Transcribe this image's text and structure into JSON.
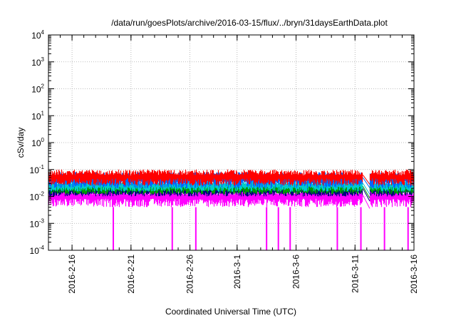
{
  "chart_data": {
    "type": "line",
    "title": "/data/run/goesPlots/archive/2016-03-15/flux/../bryn/31daysEarthData.plot",
    "xlabel": "Coordinated Universal Time (UTC)",
    "ylabel": "cSv/day",
    "y_scale": "log",
    "ylim": [
      0.0001,
      10000
    ],
    "xlim": [
      "2016-02-14",
      "2016-03-16"
    ],
    "grid": true,
    "x_ticks": [
      {
        "date": "2016-02-16",
        "label": "2016-2-16"
      },
      {
        "date": "2016-02-21",
        "label": "2016-2-21"
      },
      {
        "date": "2016-02-26",
        "label": "2016-2-26"
      },
      {
        "date": "2016-03-01",
        "label": "2016-3-1"
      },
      {
        "date": "2016-03-06",
        "label": "2016-3-6"
      },
      {
        "date": "2016-03-11",
        "label": "2016-3-11"
      },
      {
        "date": "2016-03-16",
        "label": "2016-3-16"
      }
    ],
    "y_ticks": [
      {
        "exp": "-4"
      },
      {
        "exp": "-3"
      },
      {
        "exp": "-2"
      },
      {
        "exp": "-1"
      },
      {
        "exp": "0"
      },
      {
        "exp": "1"
      },
      {
        "exp": "2"
      },
      {
        "exp": "3"
      },
      {
        "exp": "4"
      }
    ],
    "data_gap": [
      "2016-03-11T16:00",
      "2016-03-12T06:00"
    ],
    "series": [
      {
        "color": "#ff0000",
        "approx_range": [
          0.025,
          0.1
        ]
      },
      {
        "color": "#0066ff",
        "approx_range": [
          0.02,
          0.08
        ]
      },
      {
        "color": "#00cccc",
        "approx_range": [
          0.015,
          0.04
        ]
      },
      {
        "color": "#009900",
        "approx_range": [
          0.012,
          0.03
        ]
      },
      {
        "color": "#000080",
        "approx_range": [
          0.01,
          0.025
        ]
      },
      {
        "color": "#ff00ff",
        "approx_range": [
          0.004,
          0.02
        ]
      }
    ],
    "magenta_dropouts": [
      "2016-02-19",
      "2016-02-24",
      "2016-02-26",
      "2016-03-03",
      "2016-03-04",
      "2016-03-05",
      "2016-03-09",
      "2016-03-11",
      "2016-03-13",
      "2016-03-15"
    ]
  }
}
